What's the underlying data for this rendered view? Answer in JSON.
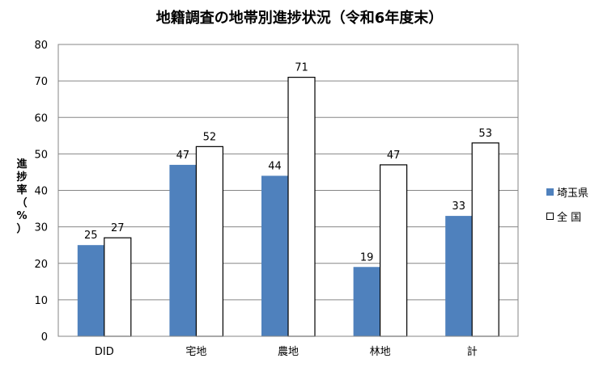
{
  "chart_data": {
    "type": "bar",
    "title": "地籍調査の地帯別進捗状況（令和6年度末）",
    "ylabel": "進捗率（%）",
    "xlabel": "",
    "ylim": [
      0,
      80
    ],
    "yticks": [
      0,
      10,
      20,
      30,
      40,
      50,
      60,
      70,
      80
    ],
    "grid": true,
    "legend_position": "right",
    "categories": [
      "DID",
      "宅地",
      "農地",
      "林地",
      "計"
    ],
    "series": [
      {
        "name": "埼玉県",
        "values": [
          25,
          47,
          44,
          19,
          33
        ],
        "color": "#4f81bd"
      },
      {
        "name": "全 国",
        "values": [
          27,
          52,
          71,
          47,
          53
        ],
        "color": "#ffffff"
      }
    ]
  }
}
